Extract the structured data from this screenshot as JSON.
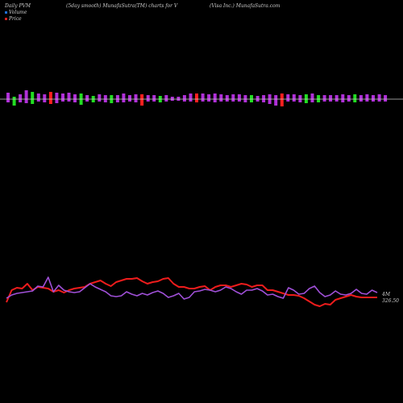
{
  "header": {
    "left": "Daily PVM",
    "center": "(5day smooth) MunafaSutra(TM) charts for V",
    "right": "(Visa Inc.) MunafaSutra.com"
  },
  "legend": {
    "volume": "Volume",
    "price": "Price"
  },
  "colors": {
    "background": "#000000",
    "volume_swatch": "#1f6fd6",
    "price_swatch": "#d62020",
    "bar_purple": "#b030d8",
    "bar_green": "#22dd22",
    "bar_red": "#ff2020",
    "price_line": "#ee1c1c",
    "volume_line": "#a050d8",
    "baseline": "#c8c8c8"
  },
  "chart_data": {
    "type": "bar",
    "title": "",
    "annotations": {
      "volume_label": "4M",
      "price_label": "326.50"
    },
    "bars": [
      {
        "up": 8,
        "down": 4,
        "color": "purple"
      },
      {
        "up": 3,
        "down": 8,
        "color": "green"
      },
      {
        "up": 6,
        "down": 4,
        "color": "purple"
      },
      {
        "up": 11,
        "down": 5,
        "color": "purple"
      },
      {
        "up": 9,
        "down": 6,
        "color": "green"
      },
      {
        "up": 7,
        "down": 3,
        "color": "purple"
      },
      {
        "up": 6,
        "down": 4,
        "color": "purple"
      },
      {
        "up": 9,
        "down": 6,
        "color": "red"
      },
      {
        "up": 8,
        "down": 5,
        "color": "purple"
      },
      {
        "up": 7,
        "down": 3,
        "color": "purple"
      },
      {
        "up": 8,
        "down": 3,
        "color": "purple"
      },
      {
        "up": 6,
        "down": 4,
        "color": "purple"
      },
      {
        "up": 7,
        "down": 7,
        "color": "green"
      },
      {
        "up": 5,
        "down": 3,
        "color": "purple"
      },
      {
        "up": 4,
        "down": 4,
        "color": "green"
      },
      {
        "up": 6,
        "down": 3,
        "color": "purple"
      },
      {
        "up": 5,
        "down": 4,
        "color": "purple"
      },
      {
        "up": 5,
        "down": 5,
        "color": "green"
      },
      {
        "up": 5,
        "down": 4,
        "color": "purple"
      },
      {
        "up": 7,
        "down": 4,
        "color": "purple"
      },
      {
        "up": 5,
        "down": 3,
        "color": "purple"
      },
      {
        "up": 6,
        "down": 4,
        "color": "purple"
      },
      {
        "up": 6,
        "down": 8,
        "color": "red"
      },
      {
        "up": 5,
        "down": 3,
        "color": "purple"
      },
      {
        "up": 5,
        "down": 3,
        "color": "purple"
      },
      {
        "up": 4,
        "down": 4,
        "color": "green"
      },
      {
        "up": 5,
        "down": 3,
        "color": "purple"
      },
      {
        "up": 3,
        "down": 2,
        "color": "purple"
      },
      {
        "up": 3,
        "down": 2,
        "color": "purple"
      },
      {
        "up": 5,
        "down": 3,
        "color": "purple"
      },
      {
        "up": 7,
        "down": 3,
        "color": "purple"
      },
      {
        "up": 7,
        "down": 4,
        "color": "red"
      },
      {
        "up": 7,
        "down": 3,
        "color": "purple"
      },
      {
        "up": 6,
        "down": 3,
        "color": "purple"
      },
      {
        "up": 7,
        "down": 4,
        "color": "purple"
      },
      {
        "up": 6,
        "down": 3,
        "color": "purple"
      },
      {
        "up": 5,
        "down": 3,
        "color": "purple"
      },
      {
        "up": 6,
        "down": 3,
        "color": "purple"
      },
      {
        "up": 6,
        "down": 3,
        "color": "purple"
      },
      {
        "up": 5,
        "down": 4,
        "color": "purple"
      },
      {
        "up": 5,
        "down": 4,
        "color": "green"
      },
      {
        "up": 4,
        "down": 3,
        "color": "purple"
      },
      {
        "up": 5,
        "down": 4,
        "color": "purple"
      },
      {
        "up": 6,
        "down": 6,
        "color": "purple"
      },
      {
        "up": 5,
        "down": 8,
        "color": "purple"
      },
      {
        "up": 7,
        "down": 9,
        "color": "red"
      },
      {
        "up": 6,
        "down": 3,
        "color": "purple"
      },
      {
        "up": 6,
        "down": 3,
        "color": "purple"
      },
      {
        "up": 5,
        "down": 4,
        "color": "purple"
      },
      {
        "up": 6,
        "down": 5,
        "color": "green"
      },
      {
        "up": 7,
        "down": 4,
        "color": "purple"
      },
      {
        "up": 5,
        "down": 4,
        "color": "green"
      },
      {
        "up": 5,
        "down": 3,
        "color": "purple"
      },
      {
        "up": 5,
        "down": 3,
        "color": "purple"
      },
      {
        "up": 5,
        "down": 3,
        "color": "purple"
      },
      {
        "up": 6,
        "down": 4,
        "color": "purple"
      },
      {
        "up": 5,
        "down": 3,
        "color": "purple"
      },
      {
        "up": 6,
        "down": 4,
        "color": "green"
      },
      {
        "up": 5,
        "down": 3,
        "color": "purple"
      },
      {
        "up": 6,
        "down": 3,
        "color": "purple"
      },
      {
        "up": 5,
        "down": 3,
        "color": "purple"
      },
      {
        "up": 6,
        "down": 3,
        "color": "purple"
      },
      {
        "up": 5,
        "down": 3,
        "color": "purple"
      }
    ],
    "series": [
      {
        "color": "price",
        "values": [
          375,
          360,
          357,
          358,
          352,
          360,
          356,
          357,
          358,
          362,
          360,
          363,
          360,
          358,
          357,
          356,
          352,
          350,
          348,
          352,
          355,
          350,
          348,
          346,
          346,
          345,
          349,
          352,
          350,
          349,
          346,
          345,
          352,
          356,
          356,
          358,
          358,
          356,
          355,
          360,
          356,
          354,
          354,
          356,
          354,
          352,
          353,
          356,
          354,
          354,
          360,
          360,
          362,
          364,
          366,
          366,
          367,
          370,
          374,
          378,
          380,
          377,
          378,
          372,
          370,
          368,
          366,
          368,
          369,
          369,
          369,
          369
        ]
      },
      {
        "color": "volume",
        "values": [
          370,
          366,
          364,
          363,
          362,
          361,
          355,
          356,
          344,
          362,
          354,
          360,
          362,
          363,
          362,
          357,
          352,
          356,
          359,
          362,
          367,
          368,
          367,
          362,
          365,
          367,
          364,
          366,
          363,
          361,
          364,
          369,
          367,
          364,
          371,
          369,
          362,
          361,
          359,
          360,
          362,
          360,
          356,
          358,
          362,
          365,
          360,
          360,
          358,
          361,
          366,
          365,
          368,
          370,
          357,
          360,
          365,
          364,
          358,
          355,
          363,
          368,
          366,
          361,
          365,
          366,
          364,
          359,
          364,
          365,
          360,
          363
        ]
      }
    ]
  }
}
